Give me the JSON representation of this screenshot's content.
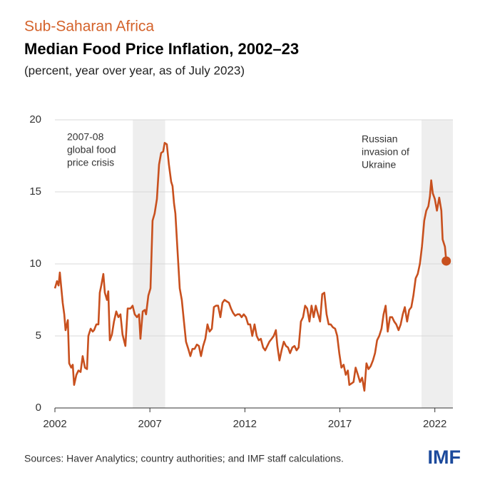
{
  "chart_data": {
    "type": "line",
    "kicker": "Sub-Saharan Africa",
    "title": "Median Food Price Inflation, 2002–23",
    "subtitle": "(percent, year over year, as of July 2023)",
    "source": "Sources: Haver Analytics; country authorities; and IMF staff calculations.",
    "logo": "IMF",
    "annotations": [
      [
        "2007-08",
        "global food",
        "price crisis"
      ],
      [
        "Russian",
        "invasion of",
        "Ukraine"
      ]
    ],
    "shaded_periods": [
      [
        2006.1,
        2007.8
      ],
      [
        2021.3,
        2022.95
      ]
    ],
    "xlim": [
      2002,
      2022.95
    ],
    "xticks": [
      2002,
      2007,
      2012,
      2017,
      2022
    ],
    "ylim": [
      0,
      20
    ],
    "yticks": [
      0,
      5,
      10,
      15,
      20
    ],
    "grid": true,
    "x": [
      2002.0,
      2002.11,
      2002.19,
      2002.26,
      2002.41,
      2002.49,
      2002.56,
      2002.68,
      2002.75,
      2002.86,
      2002.94,
      2003.01,
      2003.13,
      2003.24,
      2003.35,
      2003.46,
      2003.58,
      2003.69,
      2003.76,
      2003.88,
      2003.99,
      2004.06,
      2004.18,
      2004.29,
      2004.36,
      2004.44,
      2004.55,
      2004.63,
      2004.74,
      2004.81,
      2004.89,
      2005.0,
      2005.11,
      2005.23,
      2005.34,
      2005.45,
      2005.56,
      2005.71,
      2005.83,
      2005.98,
      2006.09,
      2006.2,
      2006.32,
      2006.43,
      2006.5,
      2006.62,
      2006.73,
      2006.8,
      2006.92,
      2007.03,
      2007.14,
      2007.25,
      2007.37,
      2007.48,
      2007.59,
      2007.7,
      2007.78,
      2007.89,
      2008.0,
      2008.12,
      2008.19,
      2008.27,
      2008.34,
      2008.45,
      2008.57,
      2008.68,
      2008.79,
      2008.9,
      2009.02,
      2009.13,
      2009.24,
      2009.35,
      2009.47,
      2009.58,
      2009.69,
      2009.8,
      2009.92,
      2010.03,
      2010.14,
      2010.26,
      2010.37,
      2010.48,
      2010.59,
      2010.71,
      2010.82,
      2010.93,
      2011.04,
      2011.16,
      2011.27,
      2011.38,
      2011.49,
      2011.61,
      2011.72,
      2011.83,
      2011.94,
      2012.06,
      2012.17,
      2012.28,
      2012.39,
      2012.51,
      2012.62,
      2012.73,
      2012.84,
      2012.96,
      2013.07,
      2013.18,
      2013.29,
      2013.41,
      2013.52,
      2013.63,
      2013.71,
      2013.82,
      2013.93,
      2014.05,
      2014.16,
      2014.27,
      2014.38,
      2014.5,
      2014.61,
      2014.72,
      2014.83,
      2014.95,
      2015.06,
      2015.17,
      2015.28,
      2015.4,
      2015.51,
      2015.62,
      2015.73,
      2015.85,
      2015.96,
      2016.07,
      2016.18,
      2016.3,
      2016.41,
      2016.52,
      2016.63,
      2016.75,
      2016.86,
      2016.97,
      2017.08,
      2017.2,
      2017.31,
      2017.42,
      2017.5,
      2017.61,
      2017.72,
      2017.83,
      2017.95,
      2018.06,
      2018.17,
      2018.29,
      2018.4,
      2018.51,
      2018.62,
      2018.74,
      2018.85,
      2018.96,
      2019.07,
      2019.19,
      2019.3,
      2019.41,
      2019.52,
      2019.64,
      2019.75,
      2019.86,
      2019.97,
      2020.09,
      2020.2,
      2020.31,
      2020.42,
      2020.54,
      2020.65,
      2020.76,
      2020.87,
      2020.99,
      2021.1,
      2021.21,
      2021.32,
      2021.44,
      2021.55,
      2021.66,
      2021.74,
      2021.81,
      2021.89,
      2022.0,
      2022.11,
      2022.23,
      2022.34,
      2022.41,
      2022.53,
      2022.6
    ],
    "series": [
      {
        "name": "Median food price inflation",
        "color": "#c8501e",
        "values": [
          8.3,
          8.8,
          8.5,
          9.4,
          7.3,
          6.5,
          5.4,
          6.1,
          3.1,
          2.8,
          3.0,
          1.6,
          2.3,
          2.6,
          2.5,
          3.6,
          2.8,
          2.7,
          5.0,
          5.5,
          5.3,
          5.4,
          5.8,
          5.8,
          8.0,
          8.5,
          9.3,
          8.0,
          7.5,
          8.1,
          4.7,
          5.1,
          6.0,
          6.7,
          6.3,
          6.5,
          5.1,
          4.3,
          6.9,
          6.9,
          7.1,
          6.5,
          6.3,
          6.5,
          4.8,
          6.7,
          6.8,
          6.5,
          7.8,
          8.3,
          13.0,
          13.5,
          14.5,
          16.9,
          17.7,
          17.8,
          18.4,
          18.3,
          16.9,
          15.7,
          15.4,
          14.2,
          13.5,
          11.0,
          8.3,
          7.5,
          6.0,
          4.6,
          4.1,
          3.6,
          4.1,
          4.1,
          4.4,
          4.3,
          3.6,
          4.3,
          4.8,
          5.8,
          5.3,
          5.5,
          7.0,
          7.1,
          7.1,
          6.3,
          7.3,
          7.5,
          7.4,
          7.3,
          6.9,
          6.6,
          6.4,
          6.5,
          6.5,
          6.3,
          6.5,
          6.3,
          5.8,
          5.8,
          5.0,
          5.8,
          5.0,
          4.7,
          4.8,
          4.2,
          4.0,
          4.3,
          4.6,
          4.8,
          5.0,
          5.4,
          4.3,
          3.3,
          4.0,
          4.6,
          4.3,
          4.2,
          3.8,
          4.2,
          4.3,
          4.0,
          4.2,
          6.0,
          6.3,
          7.1,
          6.9,
          6.0,
          7.1,
          6.3,
          7.1,
          6.5,
          6.0,
          7.9,
          8.0,
          6.5,
          5.8,
          5.8,
          5.6,
          5.5,
          5.0,
          3.8,
          2.8,
          3.0,
          2.3,
          2.6,
          1.6,
          1.7,
          1.8,
          2.8,
          2.3,
          1.8,
          2.1,
          1.2,
          3.1,
          2.7,
          2.9,
          3.3,
          3.8,
          4.7,
          5.0,
          5.5,
          6.5,
          7.1,
          5.3,
          6.3,
          6.3,
          6.0,
          5.8,
          5.4,
          5.8,
          6.5,
          7.0,
          6.0,
          6.8,
          7.0,
          7.8,
          9.0,
          9.3,
          10.0,
          11.2,
          13.0,
          13.7,
          14.0,
          14.7,
          15.8,
          14.9,
          14.5,
          13.7,
          14.6,
          13.7,
          11.7,
          11.2,
          10.2
        ]
      }
    ]
  }
}
